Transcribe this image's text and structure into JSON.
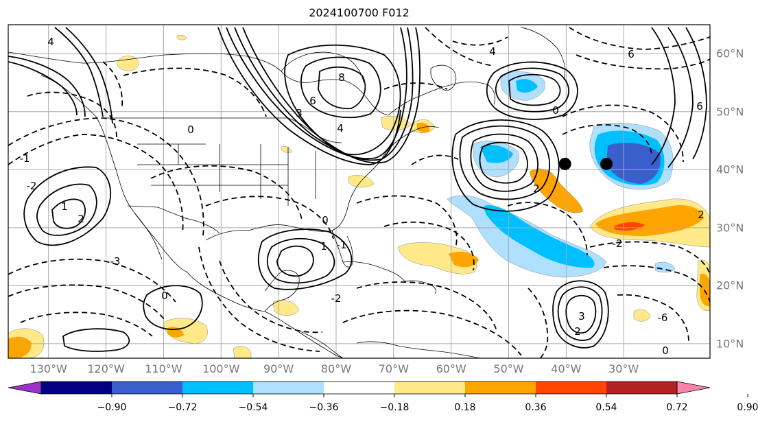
{
  "title": "2024100700 F012",
  "map": {
    "lon_range": [
      -137,
      -15
    ],
    "lat_range": [
      7.5,
      65
    ],
    "lon_ticks": [
      {
        "value": -130,
        "label": "130°W"
      },
      {
        "value": -120,
        "label": "120°W"
      },
      {
        "value": -110,
        "label": "110°W"
      },
      {
        "value": -100,
        "label": "100°W"
      },
      {
        "value": -90,
        "label": "90°W"
      },
      {
        "value": -80,
        "label": "80°W"
      },
      {
        "value": -70,
        "label": "70°W"
      },
      {
        "value": -60,
        "label": "60°W"
      },
      {
        "value": -50,
        "label": "50°W"
      },
      {
        "value": -40,
        "label": "40°W"
      },
      {
        "value": -30,
        "label": "30°W"
      }
    ],
    "lat_ticks": [
      {
        "value": 60,
        "label": "60°N"
      },
      {
        "value": 50,
        "label": "50°N"
      },
      {
        "value": 40,
        "label": "40°N"
      },
      {
        "value": 30,
        "label": "30°N"
      },
      {
        "value": 20,
        "label": "20°N"
      },
      {
        "value": 10,
        "label": "10°N"
      }
    ],
    "gridlines": true,
    "markers": [
      {
        "name": "center-marker-west",
        "lon": -40.2,
        "lat": 41
      },
      {
        "name": "center-marker-east",
        "lon": -33,
        "lat": 41
      }
    ]
  },
  "colorbar": {
    "levels": [
      -0.9,
      -0.72,
      -0.54,
      -0.36,
      -0.18,
      0.18,
      0.36,
      0.54,
      0.72,
      0.9
    ],
    "tick_labels": [
      "−0.90",
      "−0.72",
      "−0.54",
      "−0.36",
      "−0.18",
      "0.18",
      "0.36",
      "0.54",
      "0.72",
      "0.90"
    ],
    "colors": [
      "#9a32cd",
      "#000080",
      "#3a5fcd",
      "#00bfff",
      "#b0e0ff",
      "#ffffff",
      "#ffe989",
      "#ffa500",
      "#ff4500",
      "#b22222",
      "#ff82ab"
    ],
    "extend": "both"
  },
  "contour_labels": [
    "4",
    "8",
    "6",
    "4",
    "3",
    "0",
    "-1",
    "-2",
    "2",
    "1",
    "-3",
    "0",
    "6",
    "4",
    "2",
    "0",
    "-1",
    "1",
    "3",
    "2",
    "0",
    "-2",
    "-2",
    "0",
    "6",
    "-6",
    "2"
  ]
}
